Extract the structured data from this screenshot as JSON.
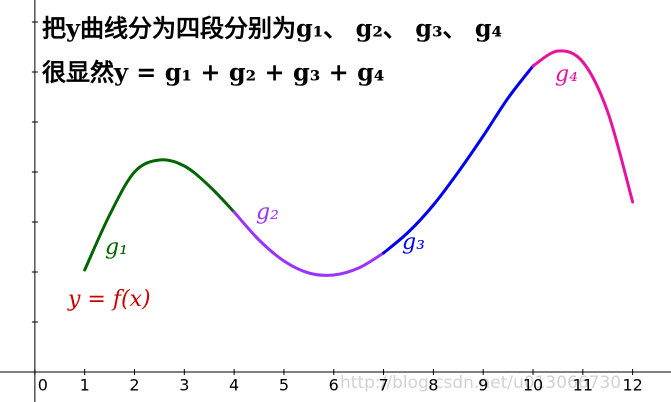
{
  "chart_data": {
    "type": "line",
    "title": "把y曲线分为四段分别为g₁、 g₂、 g₃、 g₄",
    "subtitle": "很显然y = g₁ + g₂ + g₃ + g₄",
    "annotation": "y = f(x)",
    "watermark": "http://blog.csdn.net/u013066730",
    "xlim": [
      -0.7,
      12.77
    ],
    "ylim": [
      -0.6,
      7.44
    ],
    "xticks": [
      0,
      1,
      2,
      3,
      4,
      5,
      6,
      7,
      8,
      9,
      10,
      11,
      12
    ],
    "yticks": [
      1,
      2,
      3,
      4,
      5,
      6,
      7
    ],
    "series": [
      {
        "name": "g₁",
        "color": "#006400",
        "x": [
          1,
          1.5,
          2,
          2.5,
          3,
          3.5,
          4
        ],
        "values": [
          2.04,
          3.14,
          4.0,
          4.24,
          4.12,
          3.72,
          3.2
        ]
      },
      {
        "name": "g₂",
        "color": "#9933ff",
        "x": [
          4,
          4.5,
          5,
          5.5,
          6,
          6.5,
          7
        ],
        "values": [
          3.2,
          2.64,
          2.22,
          1.98,
          1.94,
          2.08,
          2.38
        ]
      },
      {
        "name": "g₃",
        "color": "#0000ee",
        "x": [
          7,
          7.5,
          8,
          8.5,
          9,
          9.5,
          10
        ],
        "values": [
          2.38,
          2.8,
          3.34,
          4.0,
          4.72,
          5.48,
          6.12
        ]
      },
      {
        "name": "g₄",
        "color": "#e6139c",
        "x": [
          10,
          10.5,
          11,
          11.5,
          12
        ],
        "values": [
          6.12,
          6.42,
          6.2,
          5.2,
          3.4
        ]
      }
    ]
  }
}
